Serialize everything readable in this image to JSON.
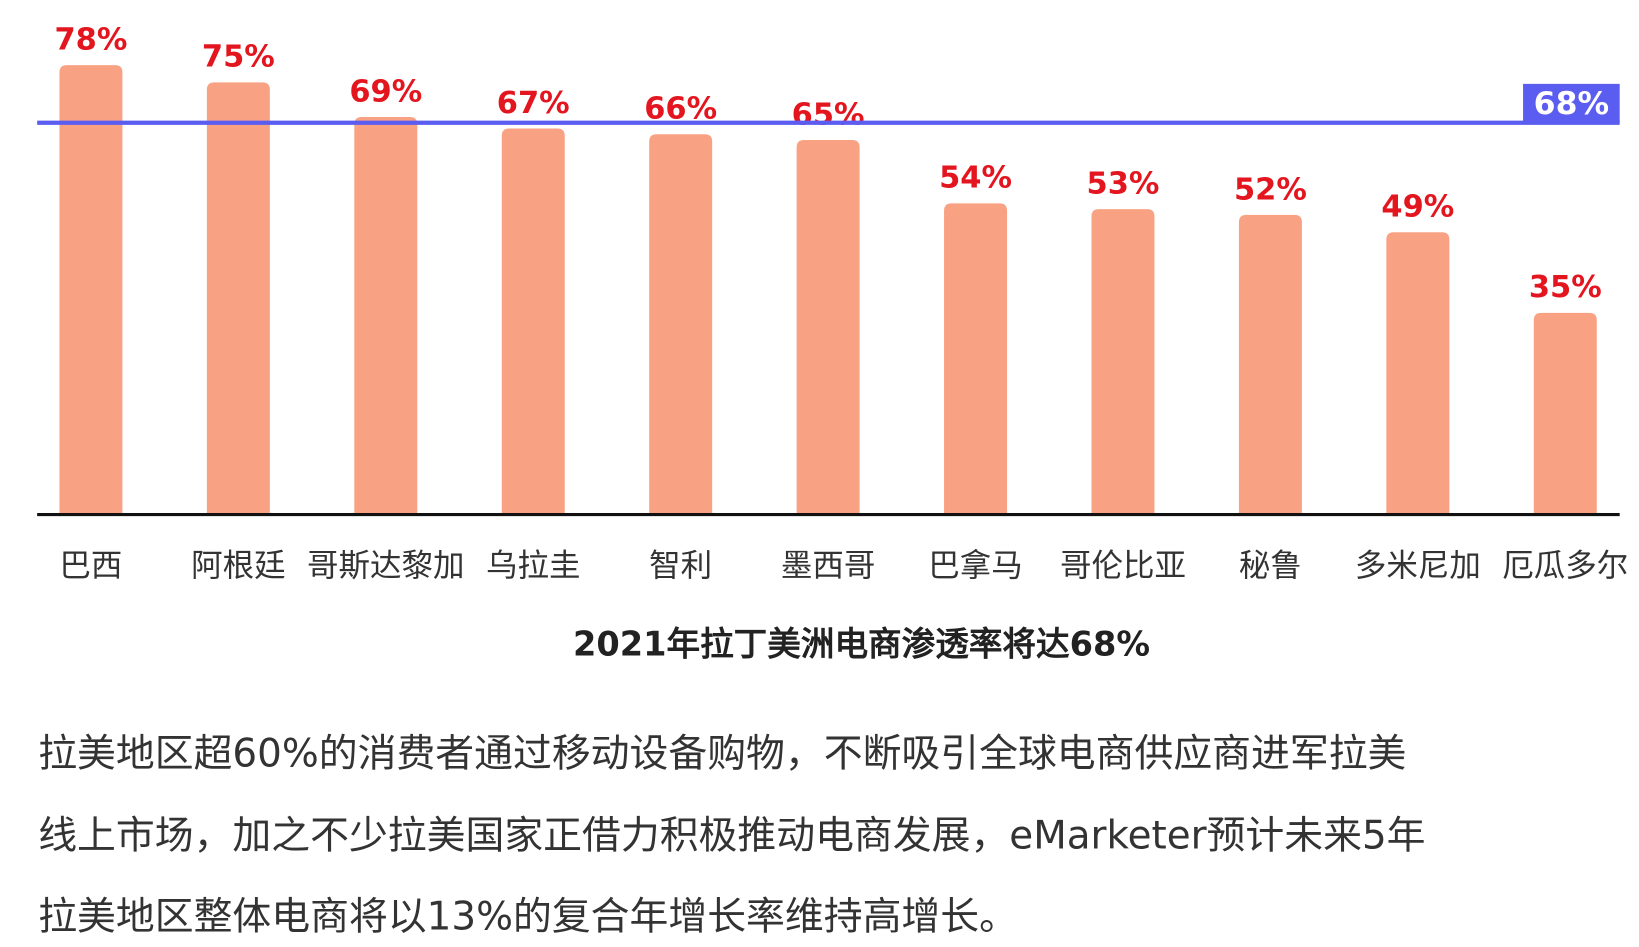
{
  "chart_data": {
    "type": "bar",
    "title": "2021年拉丁美洲电商渗透率将达68%",
    "categories": [
      "巴西",
      "阿根廷",
      "哥斯达黎加",
      "乌拉圭",
      "智利",
      "墨西哥",
      "巴拿马",
      "哥伦比亚",
      "秘鲁",
      "多米尼加",
      "厄瓜多尔"
    ],
    "values": [
      78,
      75,
      69,
      67,
      66,
      65,
      54,
      53,
      52,
      49,
      35
    ],
    "value_labels": [
      "78%",
      "75%",
      "69%",
      "67%",
      "66%",
      "65%",
      "54%",
      "53%",
      "52%",
      "49%",
      "35%"
    ],
    "color": "#f9a283",
    "label_color": "#e3151e",
    "reference_line": {
      "value": 68,
      "label": "68%",
      "color": "#5b5cf0"
    }
  },
  "paragraph_lines": [
    "拉美地区超60%的消费者通过移动设备购物，不断吸引全球电商供应商进军拉美",
    "线上市场，加之不少拉美国家正借力积极推动电商发展，eMarketer预计未来5年",
    "拉美地区整体电商将以13%的复合年增长率维持高增长。"
  ]
}
